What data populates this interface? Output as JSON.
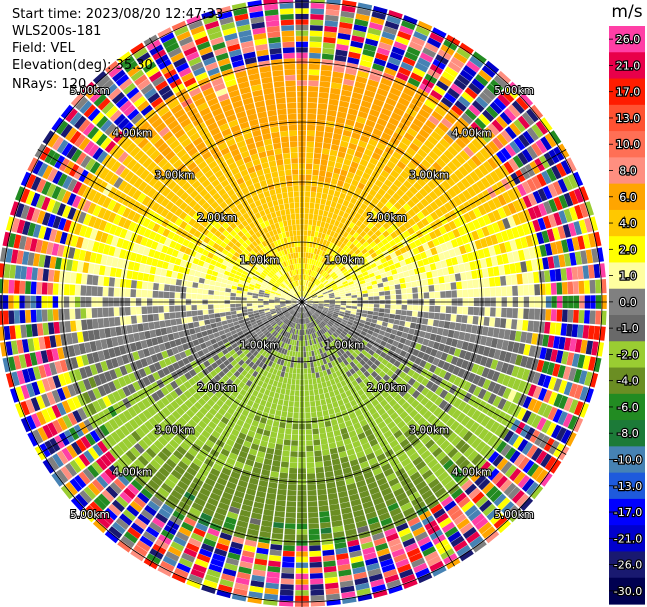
{
  "info": {
    "start_time": "Start time: 2023/08/20 12:47:33",
    "instrument": "WLS200s-181",
    "field": "Field: VEL",
    "elevation": "Elevation(deg): 35.30",
    "nrays": "NRays: 120"
  },
  "chart_data": {
    "type": "heatmap",
    "projection": "polar-ppi",
    "field": "VEL",
    "n_rays": 120,
    "range_rings_km": [
      1.0,
      2.0,
      3.0,
      4.0,
      5.0
    ],
    "range_ring_labels": [
      "1.00km",
      "2.00km",
      "3.00km",
      "4.00km",
      "5.00km"
    ],
    "max_range_km": 5.0,
    "radial_lines_deg": [
      0,
      30,
      60,
      90,
      120,
      150,
      180,
      210,
      240,
      270,
      300,
      330
    ],
    "colorbar": {
      "unit": "m/s",
      "boundaries": [
        26.0,
        21.0,
        17.0,
        13.0,
        10.0,
        8.0,
        6.0,
        4.0,
        2.0,
        1.0,
        0.0,
        -1.0,
        -2.0,
        -4.0,
        -6.0,
        -8.0,
        -10.0,
        -13.0,
        -17.0,
        -21.0,
        -26.0,
        -30.0
      ],
      "tick_labels": [
        "26.0",
        "21.0",
        "17.0",
        "13.0",
        "10.0",
        "8.0",
        "6.0",
        "4.0",
        "2.0",
        "1.0",
        "0.0",
        "-1.0",
        "-2.0",
        "-4.0",
        "-6.0",
        "-8.0",
        "-10.0",
        "-13.0",
        "-17.0",
        "-21.0",
        "-26.0",
        "-30.0"
      ],
      "colors": [
        "#ff3fa6",
        "#e8004a",
        "#ff1c00",
        "#ff5232",
        "#ff6f55",
        "#ff8f80",
        "#ffa500",
        "#ffc800",
        "#ffff00",
        "#ffffa0",
        "#808080",
        "#696969",
        "#9acd32",
        "#6b8e23",
        "#228b22",
        "#1c7a38",
        "#4682b4",
        "#1e5adc",
        "#0000ff",
        "#0000cd",
        "#191970",
        "#000050"
      ]
    }
  }
}
